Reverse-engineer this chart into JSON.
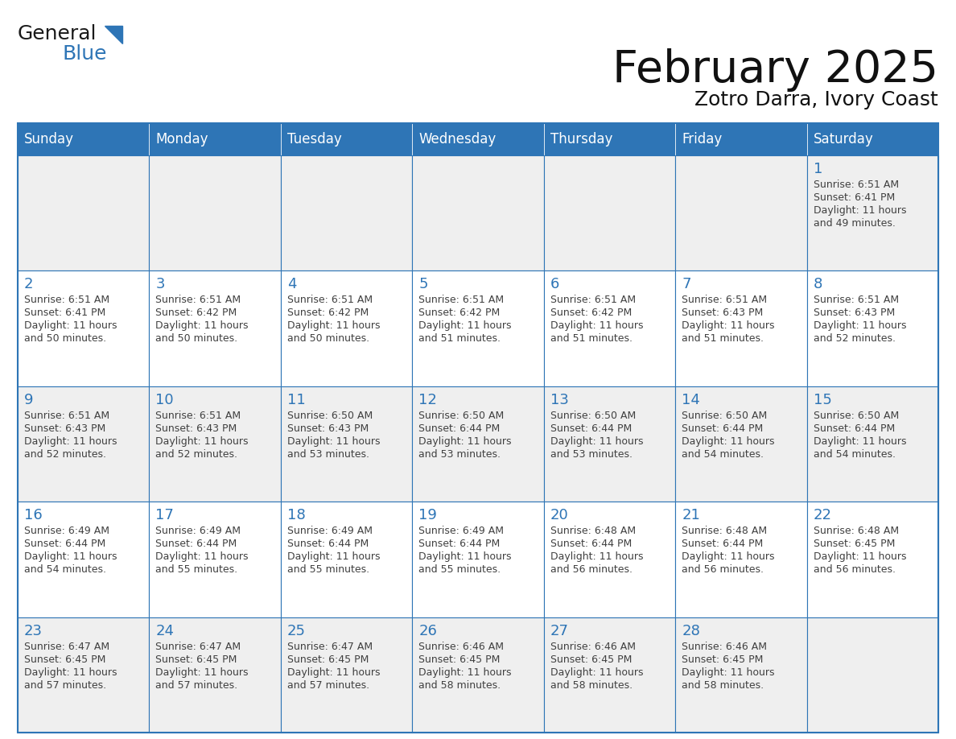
{
  "title": "February 2025",
  "subtitle": "Zotro Darra, Ivory Coast",
  "header_bg": "#2E75B6",
  "header_text_color": "#FFFFFF",
  "cell_bg_odd": "#EFEFEF",
  "cell_bg_even": "#FFFFFF",
  "day_number_color": "#2E75B6",
  "text_color": "#404040",
  "border_color": "#2E75B6",
  "days_of_week": [
    "Sunday",
    "Monday",
    "Tuesday",
    "Wednesday",
    "Thursday",
    "Friday",
    "Saturday"
  ],
  "logo_general_color": "#1a1a1a",
  "logo_blue_color": "#2E75B6",
  "calendar_data": [
    [
      null,
      null,
      null,
      null,
      null,
      null,
      {
        "day": 1,
        "sunrise": "6:51 AM",
        "sunset": "6:41 PM",
        "daylight": "11 hours and 49 minutes."
      }
    ],
    [
      {
        "day": 2,
        "sunrise": "6:51 AM",
        "sunset": "6:41 PM",
        "daylight": "11 hours and 50 minutes."
      },
      {
        "day": 3,
        "sunrise": "6:51 AM",
        "sunset": "6:42 PM",
        "daylight": "11 hours and 50 minutes."
      },
      {
        "day": 4,
        "sunrise": "6:51 AM",
        "sunset": "6:42 PM",
        "daylight": "11 hours and 50 minutes."
      },
      {
        "day": 5,
        "sunrise": "6:51 AM",
        "sunset": "6:42 PM",
        "daylight": "11 hours and 51 minutes."
      },
      {
        "day": 6,
        "sunrise": "6:51 AM",
        "sunset": "6:42 PM",
        "daylight": "11 hours and 51 minutes."
      },
      {
        "day": 7,
        "sunrise": "6:51 AM",
        "sunset": "6:43 PM",
        "daylight": "11 hours and 51 minutes."
      },
      {
        "day": 8,
        "sunrise": "6:51 AM",
        "sunset": "6:43 PM",
        "daylight": "11 hours and 52 minutes."
      }
    ],
    [
      {
        "day": 9,
        "sunrise": "6:51 AM",
        "sunset": "6:43 PM",
        "daylight": "11 hours and 52 minutes."
      },
      {
        "day": 10,
        "sunrise": "6:51 AM",
        "sunset": "6:43 PM",
        "daylight": "11 hours and 52 minutes."
      },
      {
        "day": 11,
        "sunrise": "6:50 AM",
        "sunset": "6:43 PM",
        "daylight": "11 hours and 53 minutes."
      },
      {
        "day": 12,
        "sunrise": "6:50 AM",
        "sunset": "6:44 PM",
        "daylight": "11 hours and 53 minutes."
      },
      {
        "day": 13,
        "sunrise": "6:50 AM",
        "sunset": "6:44 PM",
        "daylight": "11 hours and 53 minutes."
      },
      {
        "day": 14,
        "sunrise": "6:50 AM",
        "sunset": "6:44 PM",
        "daylight": "11 hours and 54 minutes."
      },
      {
        "day": 15,
        "sunrise": "6:50 AM",
        "sunset": "6:44 PM",
        "daylight": "11 hours and 54 minutes."
      }
    ],
    [
      {
        "day": 16,
        "sunrise": "6:49 AM",
        "sunset": "6:44 PM",
        "daylight": "11 hours and 54 minutes."
      },
      {
        "day": 17,
        "sunrise": "6:49 AM",
        "sunset": "6:44 PM",
        "daylight": "11 hours and 55 minutes."
      },
      {
        "day": 18,
        "sunrise": "6:49 AM",
        "sunset": "6:44 PM",
        "daylight": "11 hours and 55 minutes."
      },
      {
        "day": 19,
        "sunrise": "6:49 AM",
        "sunset": "6:44 PM",
        "daylight": "11 hours and 55 minutes."
      },
      {
        "day": 20,
        "sunrise": "6:48 AM",
        "sunset": "6:44 PM",
        "daylight": "11 hours and 56 minutes."
      },
      {
        "day": 21,
        "sunrise": "6:48 AM",
        "sunset": "6:44 PM",
        "daylight": "11 hours and 56 minutes."
      },
      {
        "day": 22,
        "sunrise": "6:48 AM",
        "sunset": "6:45 PM",
        "daylight": "11 hours and 56 minutes."
      }
    ],
    [
      {
        "day": 23,
        "sunrise": "6:47 AM",
        "sunset": "6:45 PM",
        "daylight": "11 hours and 57 minutes."
      },
      {
        "day": 24,
        "sunrise": "6:47 AM",
        "sunset": "6:45 PM",
        "daylight": "11 hours and 57 minutes."
      },
      {
        "day": 25,
        "sunrise": "6:47 AM",
        "sunset": "6:45 PM",
        "daylight": "11 hours and 57 minutes."
      },
      {
        "day": 26,
        "sunrise": "6:46 AM",
        "sunset": "6:45 PM",
        "daylight": "11 hours and 58 minutes."
      },
      {
        "day": 27,
        "sunrise": "6:46 AM",
        "sunset": "6:45 PM",
        "daylight": "11 hours and 58 minutes."
      },
      {
        "day": 28,
        "sunrise": "6:46 AM",
        "sunset": "6:45 PM",
        "daylight": "11 hours and 58 minutes."
      },
      null
    ]
  ]
}
